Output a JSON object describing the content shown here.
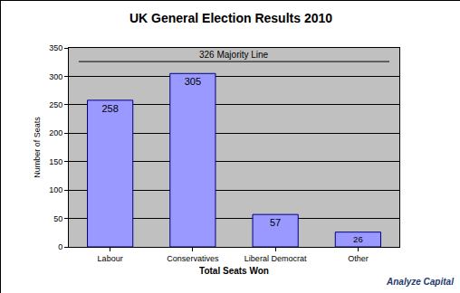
{
  "chart_data": {
    "type": "bar",
    "title": "UK General Election Results 2010",
    "x_label": "Total Seats Won",
    "y_label": "Number of Seats",
    "categories": [
      "Labour",
      "Conservatives",
      "Liberal Democrat",
      "Other"
    ],
    "values": [
      258,
      305,
      57,
      26
    ],
    "color": "#9999ff",
    "ylim": [
      0,
      350
    ],
    "yticks": [
      0,
      50,
      100,
      150,
      200,
      250,
      300,
      350
    ],
    "grid": true,
    "data_labels": true,
    "reference_line": {
      "value": 326,
      "label": "326 Majority Line"
    },
    "annotations": [
      "Analyze Capital"
    ]
  }
}
